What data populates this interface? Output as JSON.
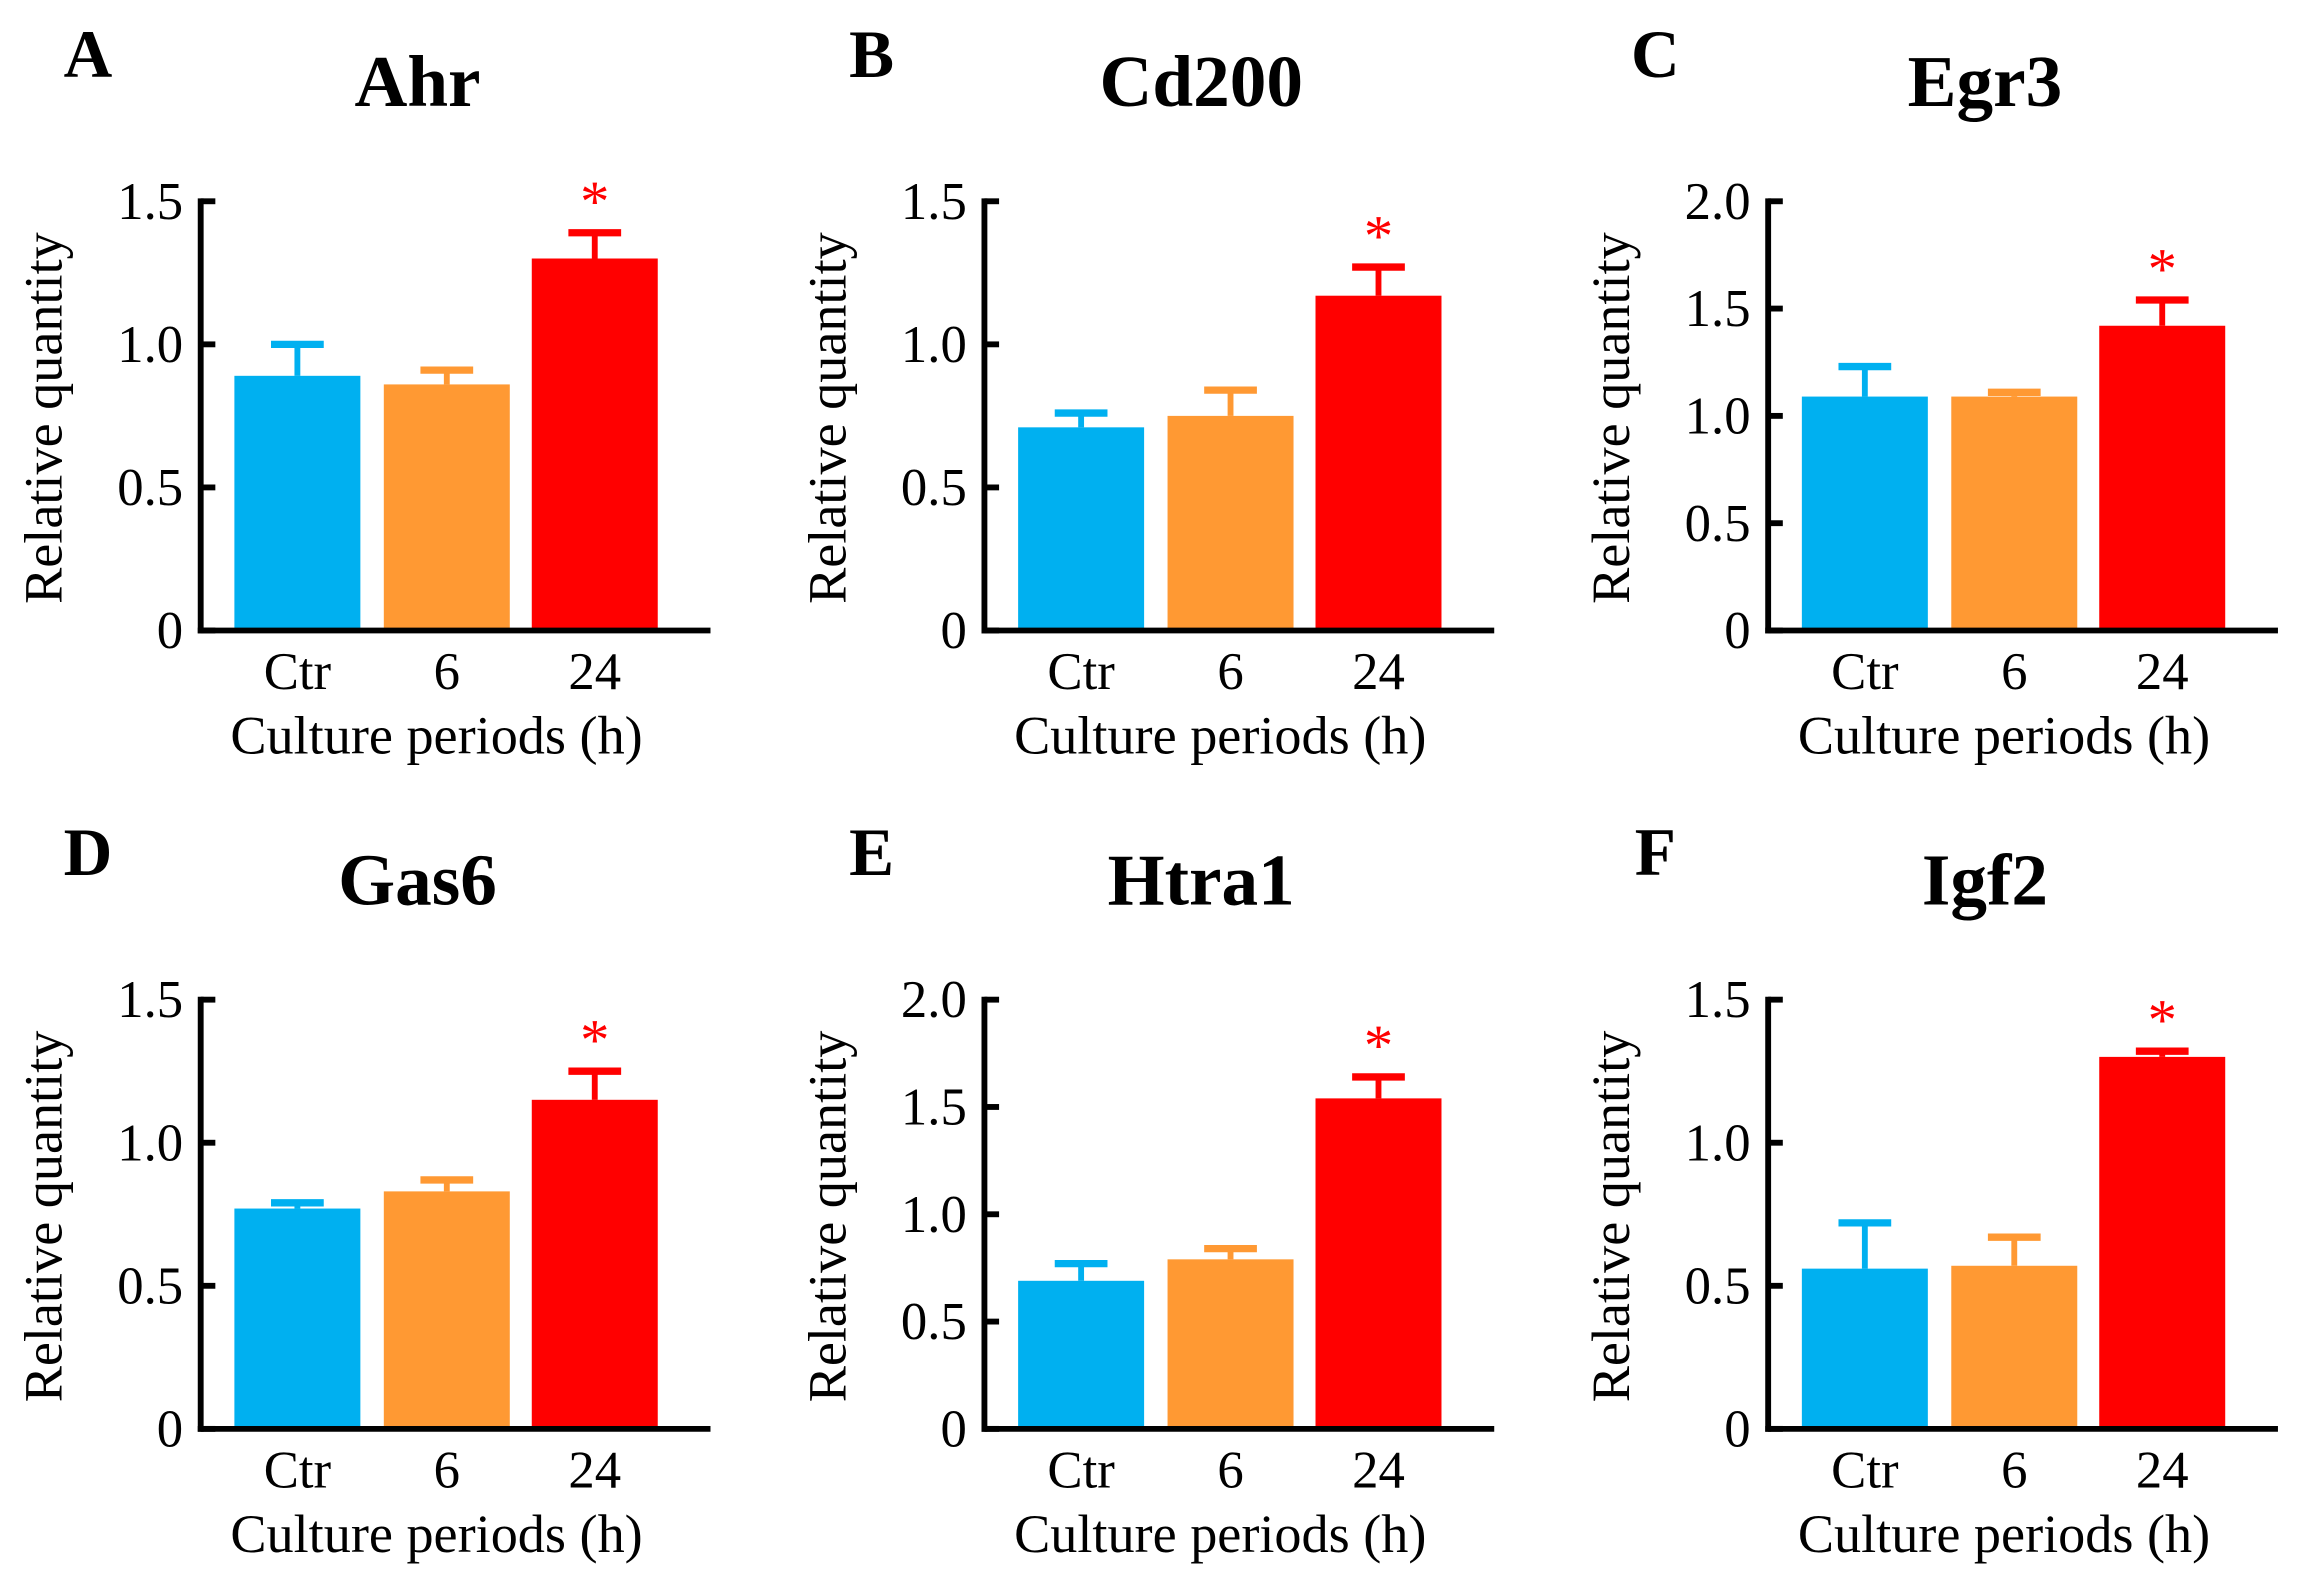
{
  "colors": {
    "ctr": "#00b0f0",
    "h6": "#ff9933",
    "h24": "#ff0000",
    "axis": "#000000"
  },
  "chart_data": [
    {
      "type": "bar",
      "panel": "A",
      "title": "Ahr",
      "xlabel": "Culture periods (h)",
      "ylabel": "Relative quantity",
      "categories": [
        "Ctr",
        "6",
        "24"
      ],
      "values": [
        0.89,
        0.86,
        1.3
      ],
      "errors": [
        0.11,
        0.05,
        0.09
      ],
      "significance": [
        "",
        "",
        "*"
      ],
      "ylim": [
        0,
        1.5
      ],
      "yticks": [
        "0",
        "0.5",
        "1.0",
        "1.5"
      ]
    },
    {
      "type": "bar",
      "panel": "B",
      "title": "Cd200",
      "xlabel": "Culture periods (h)",
      "ylabel": "Relative quantity",
      "categories": [
        "Ctr",
        "6",
        "24"
      ],
      "values": [
        0.71,
        0.75,
        1.17
      ],
      "errors": [
        0.05,
        0.09,
        0.1
      ],
      "significance": [
        "",
        "",
        "*"
      ],
      "ylim": [
        0,
        1.5
      ],
      "yticks": [
        "0",
        "0.5",
        "1.0",
        "1.5"
      ]
    },
    {
      "type": "bar",
      "panel": "C",
      "title": "Egr3",
      "xlabel": "Culture periods (h)",
      "ylabel": "Relative quantity",
      "categories": [
        "Ctr",
        "6",
        "24"
      ],
      "values": [
        1.09,
        1.09,
        1.42
      ],
      "errors": [
        0.14,
        0.02,
        0.12
      ],
      "significance": [
        "",
        "",
        "*"
      ],
      "ylim": [
        0,
        2.0
      ],
      "yticks": [
        "0",
        "0.5",
        "1.0",
        "1.5",
        "2.0"
      ]
    },
    {
      "type": "bar",
      "panel": "D",
      "title": "Gas6",
      "xlabel": "Culture periods (h)",
      "ylabel": "Relative quantity",
      "categories": [
        "Ctr",
        "6",
        "24"
      ],
      "values": [
        0.77,
        0.83,
        1.15
      ],
      "errors": [
        0.02,
        0.04,
        0.1
      ],
      "significance": [
        "",
        "",
        "*"
      ],
      "ylim": [
        0,
        1.5
      ],
      "yticks": [
        "0",
        "0.5",
        "1.0",
        "1.5"
      ]
    },
    {
      "type": "bar",
      "panel": "E",
      "title": "Htra1",
      "xlabel": "Culture periods (h)",
      "ylabel": "Relative quantity",
      "categories": [
        "Ctr",
        "6",
        "24"
      ],
      "values": [
        0.69,
        0.79,
        1.54
      ],
      "errors": [
        0.08,
        0.05,
        0.1
      ],
      "significance": [
        "",
        "",
        "*"
      ],
      "ylim": [
        0,
        2.0
      ],
      "yticks": [
        "0",
        "0.5",
        "1.0",
        "1.5",
        "2.0"
      ]
    },
    {
      "type": "bar",
      "panel": "F",
      "title": "Igf2",
      "xlabel": "Culture periods (h)",
      "ylabel": "Relative quantity",
      "categories": [
        "Ctr",
        "6",
        "24"
      ],
      "values": [
        0.56,
        0.57,
        1.3
      ],
      "errors": [
        0.16,
        0.1,
        0.02
      ],
      "significance": [
        "",
        "",
        "*"
      ],
      "ylim": [
        0,
        1.5
      ],
      "yticks": [
        "0",
        "0.5",
        "1.0",
        "1.5"
      ]
    }
  ]
}
